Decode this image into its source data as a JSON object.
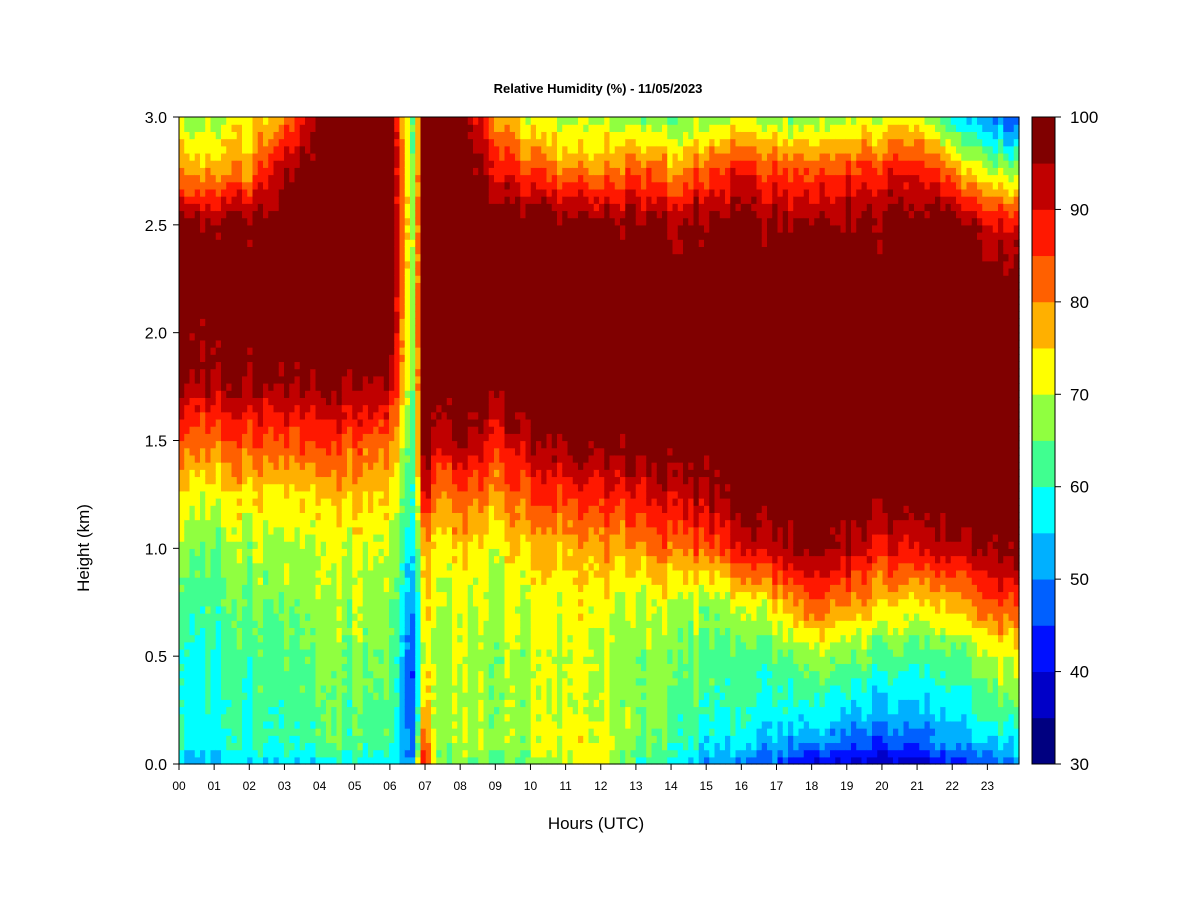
{
  "chart_data": {
    "type": "heatmap",
    "title": "Relative Humidity (%) - 11/05/2023",
    "xlabel": "Hours (UTC)",
    "ylabel": "Height (km)",
    "x_ticks": [
      "00",
      "01",
      "02",
      "03",
      "04",
      "05",
      "06",
      "07",
      "08",
      "09",
      "10",
      "11",
      "12",
      "13",
      "14",
      "15",
      "16",
      "17",
      "18",
      "19",
      "20",
      "21",
      "22",
      "23"
    ],
    "xlim": [
      0,
      23.9
    ],
    "y_ticks": [
      "0.0",
      "0.5",
      "1.0",
      "1.5",
      "2.0",
      "2.5",
      "3.0"
    ],
    "ylim": [
      0,
      3.0
    ],
    "colorbar": {
      "min": 30,
      "max": 100,
      "levels": [
        30,
        35,
        40,
        45,
        50,
        55,
        60,
        65,
        70,
        75,
        80,
        85,
        90,
        95,
        100
      ],
      "tick_labels": [
        "30",
        "40",
        "50",
        "60",
        "70",
        "80",
        "90",
        "100"
      ],
      "colors": [
        "#000080",
        "#0000c8",
        "#0010ff",
        "#0060ff",
        "#00b0ff",
        "#00ffff",
        "#40ff90",
        "#90ff40",
        "#ffff00",
        "#ffb000",
        "#ff6000",
        "#ff1800",
        "#c00000",
        "#800000"
      ]
    },
    "profile_heights_km": [
      0.0,
      0.1,
      0.25,
      0.5,
      0.75,
      1.0,
      1.25,
      1.5,
      1.8,
      2.2,
      2.5,
      2.75,
      3.0
    ],
    "profiles": [
      {
        "hour": 0,
        "rh": [
          55,
          60,
          60,
          60,
          64,
          68,
          75,
          85,
          98,
          100,
          100,
          80,
          70
        ]
      },
      {
        "hour": 1,
        "rh": [
          53,
          58,
          59,
          60,
          63,
          66,
          72,
          83,
          96,
          100,
          97,
          78,
          68
        ]
      },
      {
        "hour": 2,
        "rh": [
          55,
          60,
          60,
          62,
          65,
          68,
          74,
          84,
          97,
          100,
          99,
          80,
          72
        ]
      },
      {
        "hour": 3,
        "rh": [
          56,
          62,
          63,
          65,
          68,
          70,
          76,
          86,
          98,
          100,
          100,
          96,
          80
        ]
      },
      {
        "hour": 4,
        "rh": [
          57,
          63,
          64,
          66,
          68,
          70,
          76,
          86,
          98,
          100,
          100,
          100,
          100
        ]
      },
      {
        "hour": 5,
        "rh": [
          57,
          63,
          64,
          66,
          68,
          70,
          76,
          84,
          97,
          100,
          100,
          100,
          100
        ]
      },
      {
        "hour": 6,
        "rh": [
          57,
          63,
          64,
          66,
          68,
          70,
          75,
          82,
          97,
          100,
          100,
          100,
          100
        ]
      },
      {
        "hour": 6.7,
        "rh": [
          50,
          48,
          45,
          45,
          50,
          55,
          60,
          62,
          64,
          66,
          68,
          64,
          62
        ]
      },
      {
        "hour": 6.9,
        "rh": [
          95,
          88,
          80,
          72,
          74,
          80,
          92,
          100,
          100,
          100,
          100,
          100,
          100
        ]
      },
      {
        "hour": 7.3,
        "rh": [
          65,
          68,
          68,
          68,
          70,
          72,
          80,
          92,
          100,
          100,
          100,
          100,
          100
        ]
      },
      {
        "hour": 8,
        "rh": [
          65,
          68,
          68,
          68,
          70,
          74,
          82,
          94,
          100,
          100,
          100,
          100,
          100
        ]
      },
      {
        "hour": 9,
        "rh": [
          65,
          68,
          68,
          68,
          70,
          73,
          80,
          90,
          100,
          100,
          100,
          92,
          80
        ]
      },
      {
        "hour": 10,
        "rh": [
          65,
          68,
          68,
          68,
          70,
          75,
          84,
          94,
          100,
          100,
          100,
          84,
          70
        ]
      },
      {
        "hour": 11,
        "rh": [
          70,
          72,
          70,
          70,
          72,
          76,
          86,
          96,
          100,
          100,
          98,
          80,
          68
        ]
      },
      {
        "hour": 12,
        "rh": [
          72,
          72,
          70,
          70,
          72,
          78,
          88,
          98,
          100,
          100,
          98,
          80,
          68
        ]
      },
      {
        "hour": 13,
        "rh": [
          62,
          66,
          68,
          68,
          70,
          80,
          90,
          100,
          100,
          100,
          98,
          85,
          68
        ]
      },
      {
        "hour": 14,
        "rh": [
          60,
          63,
          65,
          67,
          70,
          82,
          92,
          100,
          100,
          100,
          96,
          80,
          65
        ]
      },
      {
        "hour": 15,
        "rh": [
          52,
          58,
          62,
          64,
          68,
          84,
          95,
          100,
          100,
          100,
          98,
          85,
          68
        ]
      },
      {
        "hour": 16,
        "rh": [
          48,
          55,
          60,
          62,
          70,
          90,
          98,
          100,
          100,
          100,
          98,
          88,
          70
        ]
      },
      {
        "hour": 17,
        "rh": [
          45,
          52,
          58,
          62,
          74,
          92,
          99,
          100,
          100,
          100,
          96,
          84,
          66
        ]
      },
      {
        "hour": 18,
        "rh": [
          40,
          50,
          58,
          68,
          84,
          97,
          100,
          100,
          100,
          100,
          96,
          84,
          66
        ]
      },
      {
        "hour": 19,
        "rh": [
          38,
          48,
          56,
          66,
          80,
          94,
          100,
          100,
          100,
          100,
          97,
          86,
          68
        ]
      },
      {
        "hour": 20,
        "rh": [
          37,
          46,
          54,
          64,
          76,
          90,
          99,
          100,
          100,
          100,
          98,
          88,
          70
        ]
      },
      {
        "hour": 21,
        "rh": [
          37,
          46,
          54,
          62,
          74,
          90,
          99,
          100,
          100,
          100,
          98,
          90,
          72
        ]
      },
      {
        "hour": 22,
        "rh": [
          42,
          50,
          56,
          62,
          76,
          92,
          100,
          100,
          100,
          100,
          100,
          80,
          58
        ]
      },
      {
        "hour": 23,
        "rh": [
          48,
          55,
          62,
          70,
          84,
          96,
          100,
          100,
          100,
          100,
          92,
          70,
          50
        ]
      },
      {
        "hour": 23.9,
        "rh": [
          50,
          56,
          64,
          72,
          86,
          97,
          100,
          100,
          100,
          100,
          90,
          66,
          45
        ]
      }
    ]
  }
}
